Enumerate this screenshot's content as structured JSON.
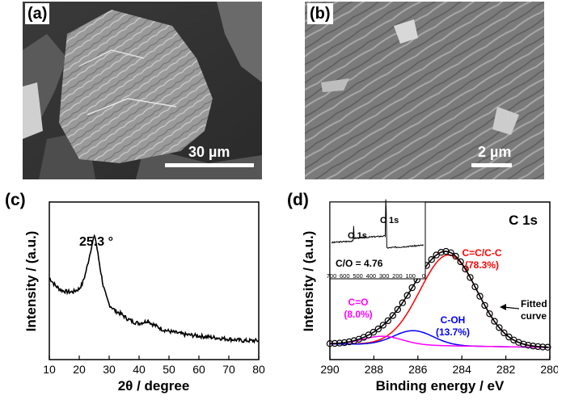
{
  "panels": {
    "a": {
      "label": "(a)",
      "scale_bar": "30 µm"
    },
    "b": {
      "label": "(b)",
      "scale_bar": "2 µm"
    },
    "c": {
      "label": "(c)"
    },
    "d": {
      "label": "(d)"
    }
  },
  "chart_data": [
    {
      "type": "line",
      "panel": "(c)",
      "title": "",
      "xlabel": "2θ / degree",
      "ylabel": "Intensity / (a.u.)",
      "xlim": [
        10,
        80
      ],
      "xticks": [
        "10",
        "20",
        "30",
        "40",
        "50",
        "60",
        "70",
        "80"
      ],
      "annotation": "25.3 °",
      "series": [
        {
          "color": "#000000",
          "x": [
            10,
            12,
            14,
            16,
            18,
            20,
            21,
            22,
            23,
            24,
            24.8,
            25.3,
            26,
            27,
            28,
            29,
            30,
            32,
            34,
            36,
            38,
            40,
            42,
            43,
            44,
            46,
            48,
            50,
            55,
            60,
            65,
            70,
            75,
            80
          ],
          "y": [
            0.52,
            0.47,
            0.44,
            0.43,
            0.43,
            0.45,
            0.48,
            0.54,
            0.62,
            0.71,
            0.77,
            0.78,
            0.7,
            0.58,
            0.47,
            0.4,
            0.35,
            0.31,
            0.29,
            0.26,
            0.24,
            0.23,
            0.24,
            0.25,
            0.23,
            0.21,
            0.19,
            0.18,
            0.16,
            0.15,
            0.14,
            0.13,
            0.12,
            0.12
          ]
        }
      ]
    },
    {
      "type": "line",
      "panel": "(d)",
      "title": "C 1s",
      "xlabel": "Binding energy / eV",
      "ylabel": "Intensity / (a.u.)",
      "xlim": [
        290,
        280
      ],
      "xticks": [
        "290",
        "288",
        "286",
        "284",
        "282",
        "280"
      ],
      "series": [
        {
          "name": "C=C/C-C",
          "pct": "(78.3%)",
          "color": "#ff0000",
          "center": 284.6,
          "height": 0.75,
          "width": 1.3
        },
        {
          "name": "C-OH",
          "pct": "(13.7%)",
          "color": "#0000ff",
          "center": 286.2,
          "height": 0.12,
          "width": 0.9
        },
        {
          "name": "C=O",
          "pct": "(8.0%)",
          "color": "#ff00ff",
          "center": 287.6,
          "height": 0.07,
          "width": 0.9
        }
      ],
      "fitted_label": [
        "Fitted",
        "curve"
      ],
      "inset": {
        "xticks": [
          "700",
          "600",
          "500",
          "400",
          "300",
          "200",
          "100",
          "0"
        ],
        "xlim": [
          700,
          0
        ],
        "peaks": [
          {
            "label": "O 1s",
            "x": 532
          },
          {
            "label": "C 1s",
            "x": 285
          }
        ],
        "ratio_text": "C/O = 4.76"
      }
    }
  ]
}
